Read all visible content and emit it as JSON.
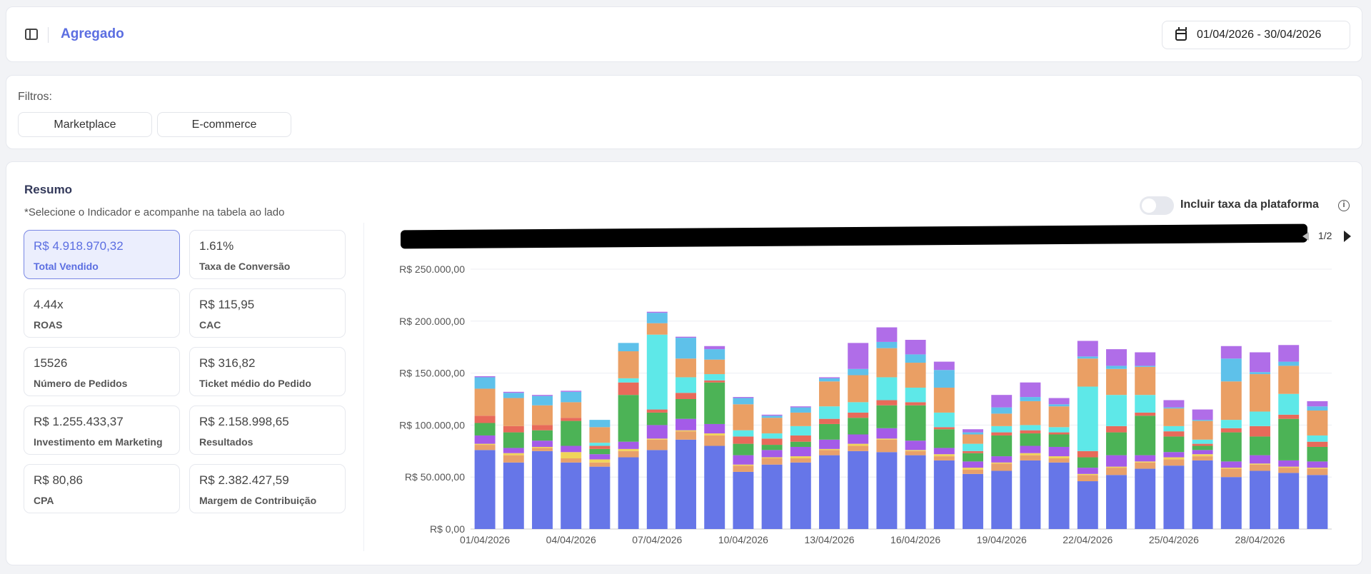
{
  "header": {
    "title": "Agregado",
    "date_range": "01/04/2026 - 30/04/2026"
  },
  "filters": {
    "label": "Filtros:",
    "buttons": [
      "Marketplace",
      "E-commerce"
    ]
  },
  "summary": {
    "title": "Resumo",
    "subtitle": "*Selecione o Indicador e acompanhe na tabela ao lado",
    "kpis": [
      {
        "value": "R$ 4.918.970,32",
        "label": "Total Vendido"
      },
      {
        "value": "1.61%",
        "label": "Taxa de Conversão"
      },
      {
        "value": "4.44x",
        "label": "ROAS"
      },
      {
        "value": "R$ 115,95",
        "label": "CAC"
      },
      {
        "value": "15526",
        "label": "Número de Pedidos"
      },
      {
        "value": "R$ 316,82",
        "label": "Ticket médio do Pedido"
      },
      {
        "value": "R$ 1.255.433,37",
        "label": "Investimento em Marketing"
      },
      {
        "value": "R$ 2.158.998,65",
        "label": "Resultados"
      },
      {
        "value": "R$ 80,86",
        "label": "CPA"
      },
      {
        "value": "R$ 2.382.427,59",
        "label": "Margem de Contribuição"
      }
    ],
    "selected_kpi": "Total Vendido",
    "toggle_label": "Incluir taxa da plataforma",
    "toggle_on": false,
    "legend_page": "1/2"
  },
  "chart_data": {
    "type": "bar",
    "stacked": true,
    "categories": [
      "01/04/2026",
      "02/04/2026",
      "03/04/2026",
      "04/04/2026",
      "05/04/2026",
      "06/04/2026",
      "07/04/2026",
      "08/04/2026",
      "09/04/2026",
      "10/04/2026",
      "11/04/2026",
      "12/04/2026",
      "13/04/2026",
      "14/04/2026",
      "15/04/2026",
      "16/04/2026",
      "17/04/2026",
      "18/04/2026",
      "19/04/2026",
      "20/04/2026",
      "21/04/2026",
      "22/04/2026",
      "23/04/2026",
      "24/04/2026",
      "25/04/2026",
      "26/04/2026",
      "27/04/2026",
      "28/04/2026",
      "29/04/2026",
      "30/04/2026"
    ],
    "x_tick_labels": [
      "01/04/2026",
      "04/04/2026",
      "07/04/2026",
      "10/04/2026",
      "13/04/2026",
      "16/04/2026",
      "19/04/2026",
      "22/04/2026",
      "25/04/2026",
      "28/04/2026"
    ],
    "y_tick_labels": [
      "R$ 0,00",
      "R$ 50.000,00",
      "R$ 100.000,00",
      "R$ 150.000,00",
      "R$ 200.000,00",
      "R$ 250.000,00"
    ],
    "ylim": [
      0,
      250000
    ],
    "grid": true,
    "series_colors": [
      "#6676e8",
      "#e8a06a",
      "#f0d45a",
      "#a45be8",
      "#4cb356",
      "#e86a5a",
      "#5ee8e8",
      "#ea9f64",
      "#5ec1ea",
      "#b06de8"
    ],
    "series": [
      {
        "values": [
          76000,
          64000,
          75000,
          64000,
          60000,
          69000,
          76000,
          86000,
          80000,
          55000,
          62000,
          64000,
          71000,
          75000,
          74000,
          71000,
          66000,
          53000,
          56000,
          66000,
          64000,
          46000,
          52000,
          58000,
          61000,
          66000,
          50000,
          56000,
          54000,
          52000
        ]
      },
      {
        "values": [
          5000,
          7000,
          3000,
          4000,
          4000,
          6000,
          10000,
          8000,
          10000,
          6000,
          6000,
          4000,
          5000,
          5000,
          12000,
          4000,
          4000,
          4000,
          7000,
          5000,
          4000,
          6000,
          7000,
          6000,
          6000,
          4000,
          8000,
          6000,
          5000,
          6000
        ]
      },
      {
        "values": [
          1000,
          2000,
          1000,
          6000,
          3000,
          2000,
          1000,
          1000,
          2000,
          1000,
          1000,
          2000,
          1000,
          2000,
          1000,
          1000,
          2000,
          2000,
          1000,
          2000,
          2000,
          1000,
          1000,
          1000,
          2000,
          2000,
          1000,
          1000,
          1000,
          1000
        ]
      },
      {
        "values": [
          8000,
          5000,
          6000,
          6000,
          5000,
          7000,
          13000,
          11000,
          9000,
          9000,
          7000,
          9000,
          9000,
          9000,
          10000,
          9000,
          6000,
          6000,
          6000,
          7000,
          9000,
          6000,
          11000,
          6000,
          5000,
          4000,
          6000,
          8000,
          6000,
          6000
        ]
      },
      {
        "values": [
          12000,
          15000,
          10000,
          24000,
          5000,
          45000,
          12000,
          19000,
          40000,
          11000,
          5000,
          5000,
          15000,
          16000,
          22000,
          34000,
          18000,
          8000,
          20000,
          12000,
          12000,
          10000,
          22000,
          38000,
          15000,
          4000,
          28000,
          18000,
          40000,
          14000
        ]
      },
      {
        "values": [
          7000,
          6000,
          5000,
          3000,
          3000,
          12000,
          3000,
          6000,
          2000,
          7000,
          6000,
          6000,
          5000,
          5000,
          5000,
          3000,
          2000,
          2000,
          3000,
          3000,
          2000,
          6000,
          6000,
          3000,
          5000,
          2000,
          4000,
          10000,
          4000,
          5000
        ]
      },
      {
        "values": [
          0,
          0,
          0,
          0,
          3000,
          4000,
          72000,
          15000,
          6000,
          6000,
          5000,
          9000,
          12000,
          10000,
          22000,
          14000,
          14000,
          7000,
          6000,
          5000,
          5000,
          62000,
          30000,
          17000,
          5000,
          4000,
          8000,
          14000,
          20000,
          6000
        ]
      },
      {
        "values": [
          26000,
          27000,
          19000,
          15000,
          15000,
          26000,
          11000,
          18000,
          14000,
          25000,
          15000,
          13000,
          24000,
          26000,
          28000,
          24000,
          24000,
          9000,
          12000,
          23000,
          20000,
          27000,
          25000,
          27000,
          17000,
          18000,
          37000,
          36000,
          27000,
          24000
        ]
      },
      {
        "values": [
          11000,
          5000,
          9000,
          10000,
          7000,
          8000,
          10000,
          20000,
          10000,
          6000,
          2000,
          5000,
          3000,
          6000,
          6000,
          8000,
          17000,
          2000,
          6000,
          4000,
          2000,
          2000,
          3000,
          1000,
          1000,
          1000,
          22000,
          2000,
          4000,
          4000
        ]
      },
      {
        "values": [
          1000,
          1000,
          1000,
          1000,
          0,
          0,
          1000,
          1000,
          3000,
          1000,
          1000,
          1000,
          1000,
          25000,
          14000,
          14000,
          8000,
          3000,
          12000,
          14000,
          6000,
          15000,
          16000,
          13000,
          7000,
          10000,
          12000,
          19000,
          16000,
          5000
        ]
      }
    ]
  }
}
